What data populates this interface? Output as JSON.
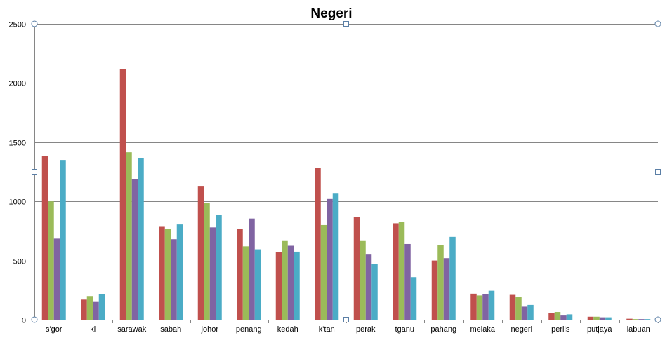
{
  "chart_data": {
    "type": "bar",
    "title": "Negeri",
    "xlabel": "",
    "ylabel": "",
    "ylim": [
      0,
      2500
    ],
    "yticks": [
      0,
      500,
      1000,
      1500,
      2000,
      2500
    ],
    "grid": true,
    "legend": "none",
    "categories": [
      "s'gor",
      "kl",
      "sarawak",
      "sabah",
      "johor",
      "penang",
      "kedah",
      "k'tan",
      "perak",
      "tganu",
      "pahang",
      "melaka",
      "negeri",
      "perlis",
      "putjaya",
      "labuan"
    ],
    "series": [
      {
        "color": "#c0504d",
        "values": [
          1385,
          170,
          2120,
          785,
          1125,
          770,
          570,
          1285,
          865,
          815,
          500,
          220,
          210,
          55,
          25,
          8
        ]
      },
      {
        "color": "#9bbb59",
        "values": [
          1000,
          200,
          1415,
          765,
          985,
          620,
          665,
          800,
          665,
          825,
          630,
          205,
          195,
          65,
          25,
          5
        ]
      },
      {
        "color": "#8064a2",
        "values": [
          685,
          150,
          1190,
          680,
          780,
          855,
          625,
          1020,
          550,
          640,
          520,
          215,
          110,
          35,
          20,
          5
        ]
      },
      {
        "color": "#4bacc6",
        "values": [
          1350,
          215,
          1365,
          805,
          885,
          595,
          575,
          1065,
          470,
          360,
          700,
          245,
          125,
          45,
          20,
          5
        ]
      }
    ]
  },
  "colors": {
    "gridline": "#868686",
    "axis": "#868686",
    "handle_stroke": "#5b7fa6",
    "handle_fill": "#ffffff"
  }
}
